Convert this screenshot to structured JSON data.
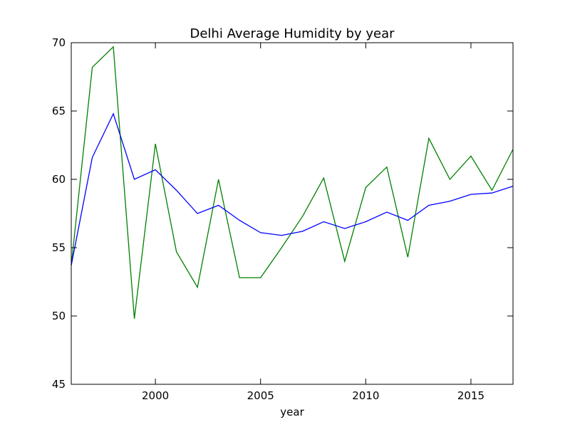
{
  "chart_data": {
    "type": "line",
    "title": "Delhi Average Humidity by year",
    "xlabel": "year",
    "ylabel": "",
    "xlim": [
      1996,
      2017
    ],
    "ylim": [
      45,
      70
    ],
    "xticks": [
      2000,
      2005,
      2010,
      2015
    ],
    "yticks": [
      45,
      50,
      55,
      60,
      65,
      70
    ],
    "grid": false,
    "legend": "none",
    "x": [
      1996,
      1997,
      1998,
      1999,
      2000,
      2001,
      2002,
      2003,
      2004,
      2005,
      2006,
      2007,
      2008,
      2009,
      2010,
      2011,
      2012,
      2013,
      2014,
      2015,
      2016,
      2017
    ],
    "series": [
      {
        "color": "#008000",
        "values": [
          53.7,
          68.2,
          69.7,
          49.8,
          62.6,
          54.7,
          52.1,
          60.0,
          52.8,
          52.8,
          55.0,
          57.3,
          60.1,
          54.0,
          59.4,
          60.9,
          54.3,
          63.0,
          60.0,
          61.7,
          59.2,
          62.2
        ]
      },
      {
        "color": "#0000ff",
        "values": [
          53.7,
          61.6,
          64.8,
          60.0,
          60.7,
          59.2,
          57.5,
          58.1,
          57.0,
          56.1,
          55.9,
          56.2,
          56.9,
          56.4,
          56.9,
          57.6,
          57.0,
          58.1,
          58.4,
          58.9,
          59.0,
          59.5
        ]
      }
    ]
  }
}
